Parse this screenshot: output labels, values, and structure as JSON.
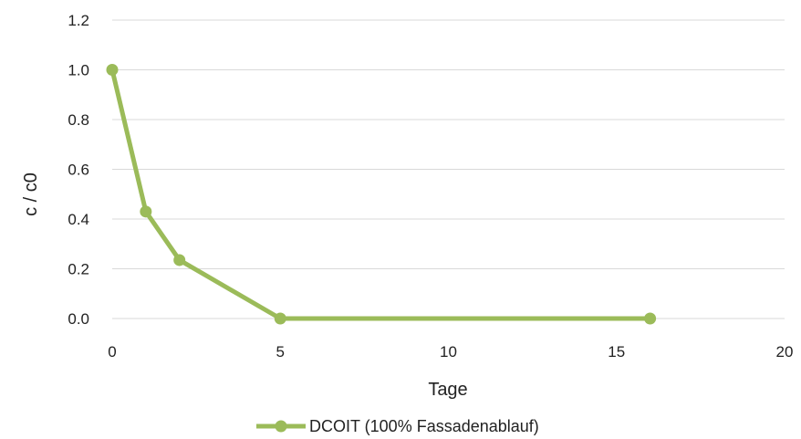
{
  "chart_data": {
    "type": "line",
    "title": "",
    "xlabel": "Tage",
    "ylabel": "c / c0",
    "xlim": [
      0,
      20
    ],
    "ylim": [
      0,
      1.2
    ],
    "xticks": [
      "0",
      "5",
      "10",
      "15",
      "20"
    ],
    "yticks": [
      "0.0",
      "0.2",
      "0.4",
      "0.6",
      "0.8",
      "1.0",
      "1.2"
    ],
    "grid": "horizontal",
    "legend_position": "bottom",
    "series": [
      {
        "name": "DCOIT (100% Fassadenablauf)",
        "color": "#9bbb59",
        "marker": "circle",
        "x": [
          0,
          1,
          2,
          5,
          16
        ],
        "y": [
          1.0,
          0.43,
          0.235,
          0.0,
          0.0
        ]
      }
    ]
  }
}
